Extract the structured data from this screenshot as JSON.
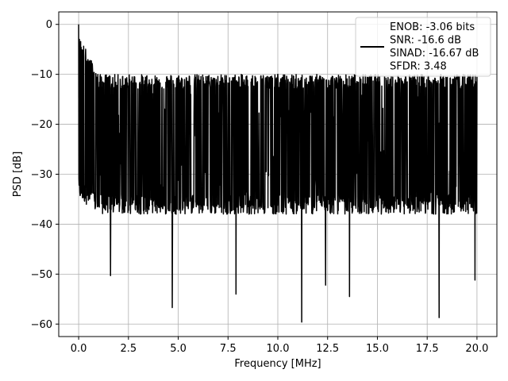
{
  "chart_data": {
    "type": "line",
    "title": "",
    "xlabel": "Frequency [MHz]",
    "ylabel": "PSD [dB]",
    "xlim": [
      -1.0,
      21.0
    ],
    "ylim": [
      -62.5,
      2.5
    ],
    "x_ticks": [
      0.0,
      2.5,
      5.0,
      7.5,
      10.0,
      12.5,
      15.0,
      17.5,
      20.0
    ],
    "x_tick_labels": [
      "0.0",
      "2.5",
      "5.0",
      "7.5",
      "10.0",
      "12.5",
      "15.0",
      "17.5",
      "20.0"
    ],
    "y_ticks": [
      0,
      -10,
      -20,
      -30,
      -40,
      -50,
      -60
    ],
    "y_tick_labels": [
      "0",
      "−10",
      "−20",
      "−30",
      "−40",
      "−50",
      "−60"
    ],
    "grid": true,
    "legend_position": "top-right",
    "line_color": "#000000",
    "series": [
      {
        "x_range": [
          0.0,
          20.0
        ],
        "points_count": 1600,
        "noise_floor_mean": -24,
        "noise_floor_spread": [
          -38,
          -13
        ],
        "peaks": [
          {
            "x": 0.0,
            "y": 0.0
          },
          {
            "x": 10.0,
            "y": -10.0
          }
        ],
        "dips": [
          {
            "x": 1.6,
            "y": -50.3
          },
          {
            "x": 4.7,
            "y": -56.7
          },
          {
            "x": 7.9,
            "y": -54.0
          },
          {
            "x": 11.2,
            "y": -59.6
          },
          {
            "x": 12.4,
            "y": -52.2
          },
          {
            "x": 13.6,
            "y": -54.5
          },
          {
            "x": 18.1,
            "y": -58.7
          },
          {
            "x": 19.9,
            "y": -51.2
          }
        ]
      }
    ],
    "legend_lines": [
      "ENOB: -3.06 bits",
      "SNR: -16.6 dB",
      "SINAD: -16.67 dB",
      "SFDR: 3.48"
    ]
  }
}
